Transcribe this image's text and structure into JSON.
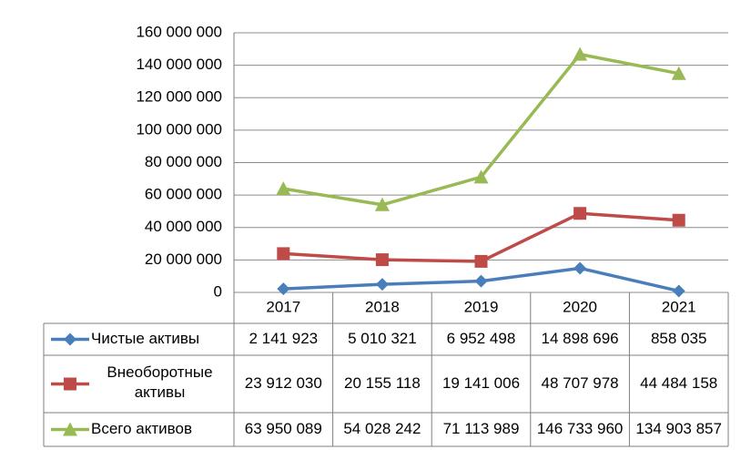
{
  "chart_data": {
    "type": "line",
    "categories": [
      "2017",
      "2018",
      "2019",
      "2020",
      "2021"
    ],
    "ylim": [
      0,
      160000000
    ],
    "yticks": [
      {
        "value": 0,
        "label": "0"
      },
      {
        "value": 20000000,
        "label": "20 000 000"
      },
      {
        "value": 40000000,
        "label": "40 000 000"
      },
      {
        "value": 60000000,
        "label": "60 000 000"
      },
      {
        "value": 80000000,
        "label": "80 000 000"
      },
      {
        "value": 100000000,
        "label": "100 000 000"
      },
      {
        "value": 120000000,
        "label": "120 000 000"
      },
      {
        "value": 140000000,
        "label": "140 000 000"
      },
      {
        "value": 160000000,
        "label": "160 000 000"
      }
    ],
    "grid": true,
    "legend": "table",
    "series": [
      {
        "name": "Чистые активы",
        "color": "#4a7ebb",
        "marker": "diamond",
        "values": [
          2141923,
          5010321,
          6952498,
          14898696,
          858035
        ],
        "value_labels": [
          "2 141 923",
          "5 010 321",
          "6 952 498",
          "14 898 696",
          "858 035"
        ]
      },
      {
        "name": "Внеоборотные активы",
        "color": "#be4b48",
        "marker": "square",
        "values": [
          23912030,
          20155118,
          19141006,
          48707978,
          44484158
        ],
        "value_labels": [
          "23 912 030",
          "20 155 118",
          "19 141 006",
          "48 707 978",
          "44 484 158"
        ]
      },
      {
        "name": "Всего активов",
        "color": "#98b954",
        "marker": "triangle",
        "values": [
          63950089,
          54028242,
          71113989,
          146733960,
          134903857
        ],
        "value_labels": [
          "63 950 089",
          "54 028 242",
          "71 113 989",
          "146 733 960",
          "134 903 857"
        ]
      }
    ]
  }
}
